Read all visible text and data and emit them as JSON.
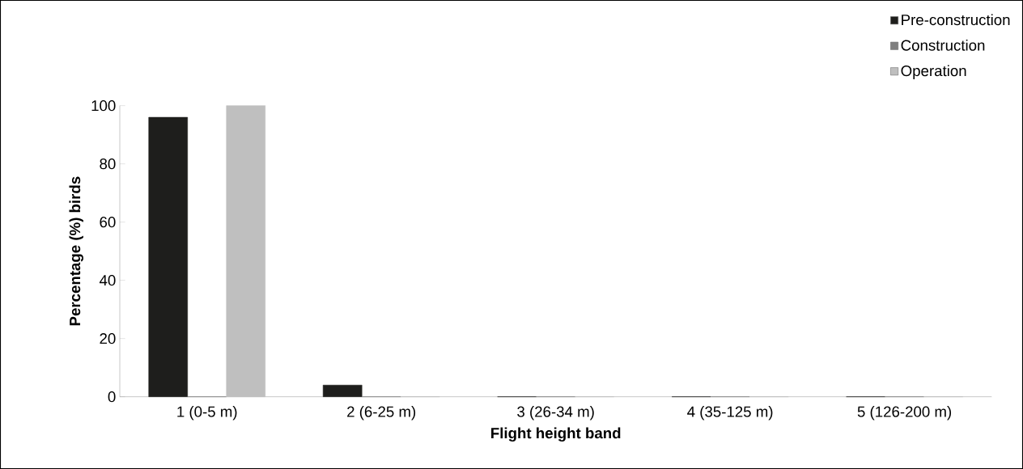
{
  "chart_data": {
    "type": "bar",
    "xlabel": "Flight height band",
    "ylabel": "Percentage (%) birds",
    "categories": [
      "1 (0-5 m)",
      "2 (6-25 m)",
      "3 (26-34 m)",
      "4 (35-125 m)",
      "5 (126-200 m)"
    ],
    "series": [
      {
        "name": "Pre-construction",
        "color": "#1e1e1c",
        "values": [
          96,
          4,
          0,
          0,
          0
        ]
      },
      {
        "name": "Construction",
        "color": "#7f7f7f",
        "values": [
          0,
          0,
          0,
          0,
          0
        ]
      },
      {
        "name": "Operation",
        "color": "#bfbfbf",
        "values": [
          100,
          0,
          0,
          0,
          0
        ]
      }
    ],
    "ylim": [
      0,
      100
    ],
    "yticks": [
      0,
      20,
      40,
      60,
      80,
      100
    ],
    "grid": false,
    "legend": "top right"
  }
}
